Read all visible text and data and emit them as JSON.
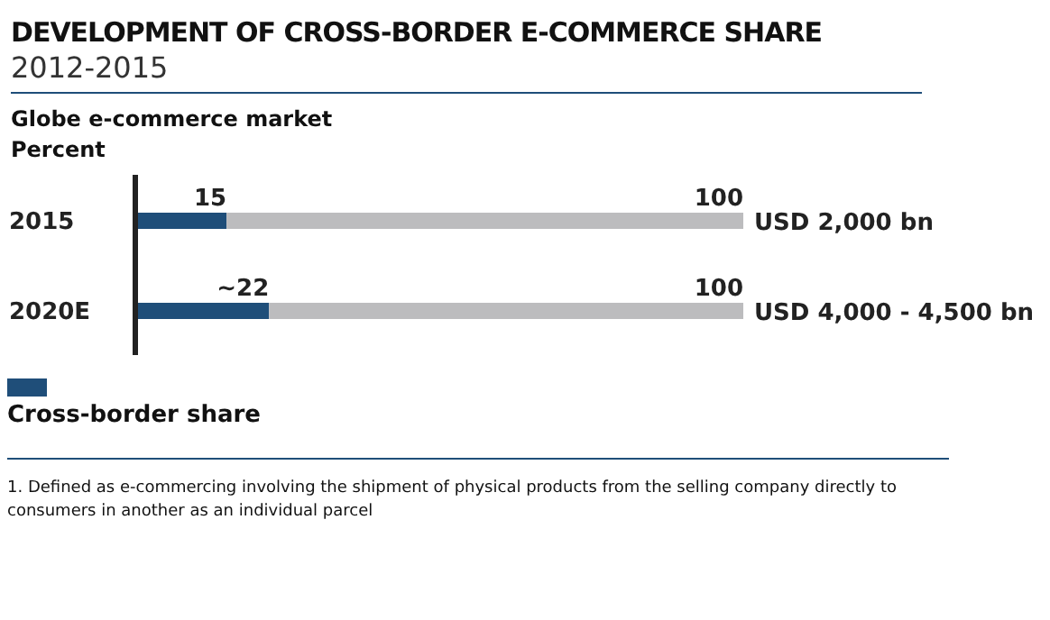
{
  "chart_data": {
    "type": "bar",
    "orientation": "horizontal",
    "stacked": true,
    "title": "DEVELOPMENT OF CROSS-BORDER E-COMMERCE SHARE",
    "subtitle": "2012-2015",
    "categories": [
      "2015",
      "2020E"
    ],
    "series": [
      {
        "name": "Cross-border share",
        "color": "#1f4e79",
        "values": [
          15,
          22
        ],
        "value_labels": [
          "15",
          "~22"
        ]
      },
      {
        "color": "#bcbcbe",
        "values": [
          85,
          78
        ]
      }
    ],
    "totals": [
      "100",
      "100"
    ],
    "xlim": [
      0,
      100
    ],
    "tick_labels": "y",
    "legend": "bottom left",
    "annotations": [
      "Globe e-commerce market",
      "Percent",
      {
        "text": "USD 2,000 bn",
        "x": 100,
        "y": "2015"
      },
      {
        "text": "USD 4,000 - 4,500 bn",
        "x": 100,
        "y": "2020E"
      },
      "1. Defined as e-commercing involving the shipment of physical products from the selling company directly to consumers in another as an individual parcel"
    ]
  }
}
